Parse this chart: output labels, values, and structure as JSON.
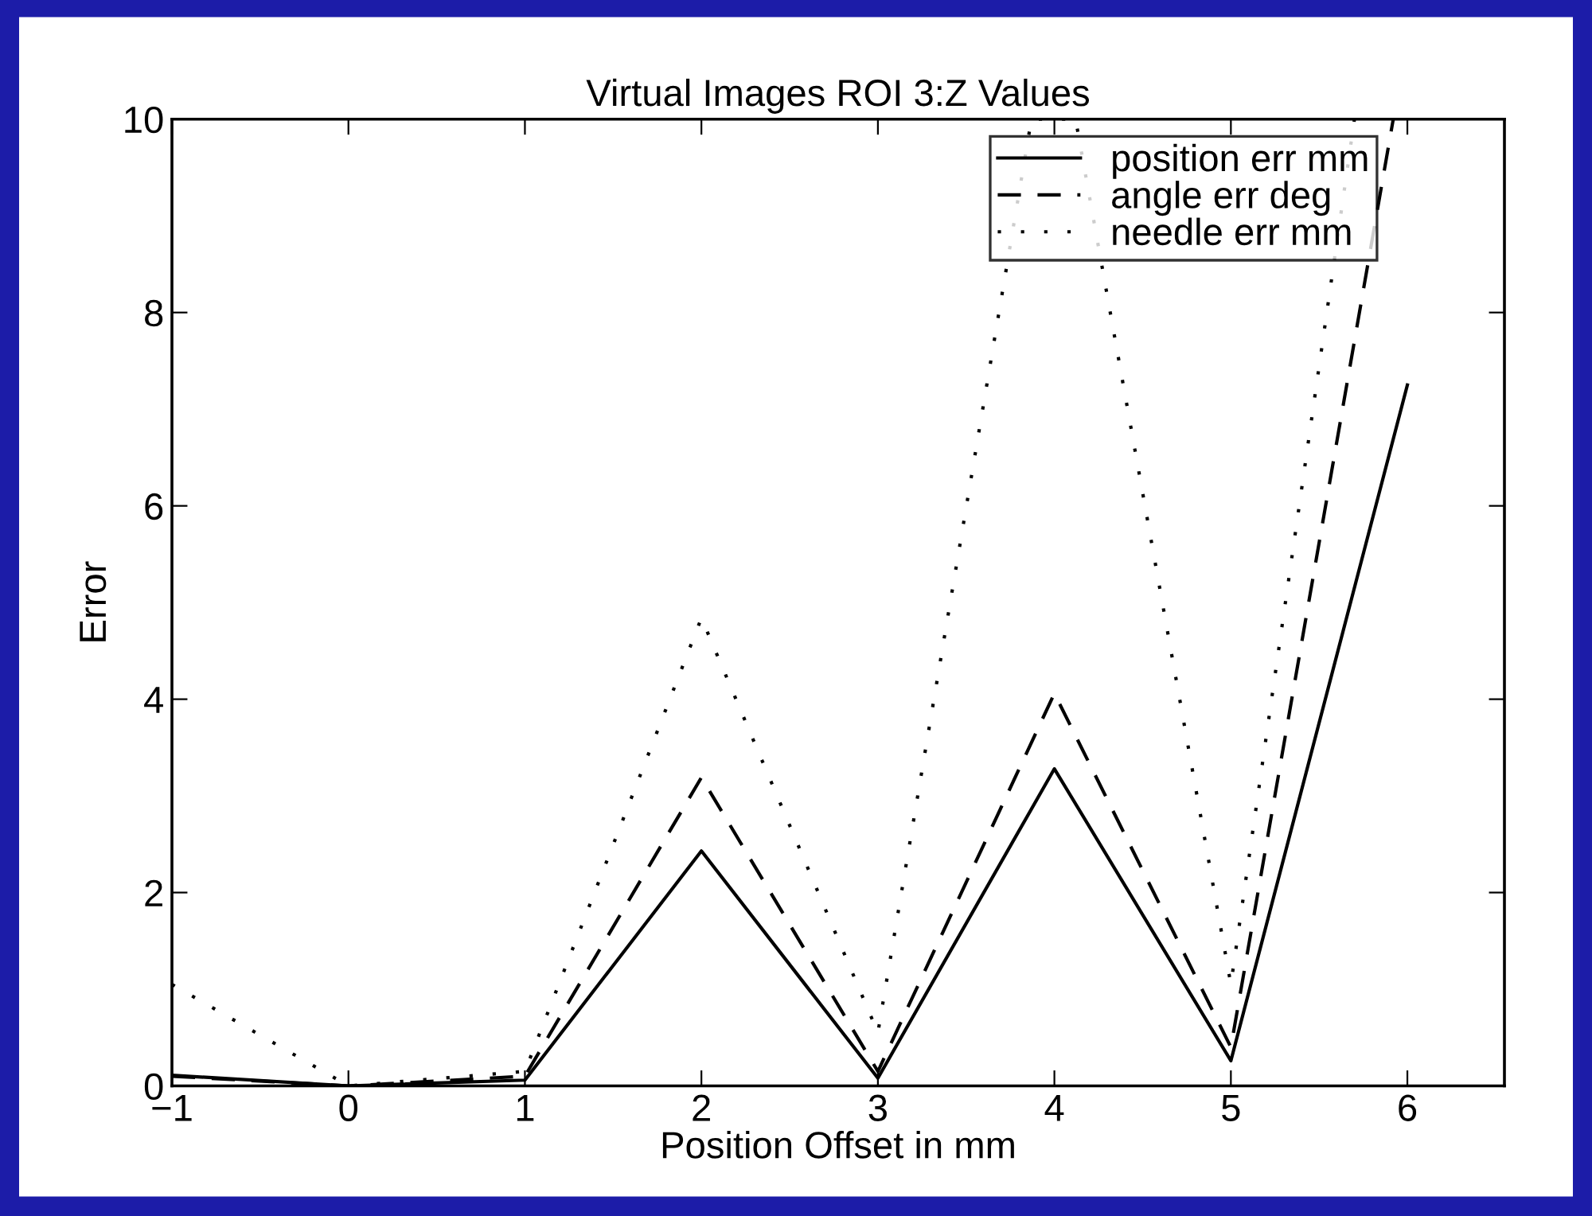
{
  "chart_data": {
    "type": "line",
    "title": "Virtual Images ROI 3:Z Values",
    "xlabel": "Position Offset in mm",
    "ylabel": "Error",
    "x": [
      -1,
      0,
      1,
      2,
      3,
      4,
      5,
      6
    ],
    "series": [
      {
        "name": "position err mm",
        "color": "#000000",
        "line_style": "solid",
        "values": [
          0.11,
          0,
          0.06,
          2.43,
          0.08,
          3.28,
          0.26,
          7.25
        ]
      },
      {
        "name": "angle err deg",
        "color": "#000000",
        "line_style": "dashed",
        "x": [
          -1,
          0,
          1,
          2,
          3,
          4,
          5,
          5.92
        ],
        "values": [
          0.1,
          0,
          0.1,
          3.19,
          0.15,
          4.06,
          0.4,
          10
        ]
      },
      {
        "name": "needle err mm",
        "color": "#000000",
        "line_style": "dotted",
        "x": [
          -1,
          0,
          1,
          2,
          3,
          3.87,
          4.12,
          5,
          5.7
        ],
        "values": [
          1.05,
          0,
          0.15,
          4.84,
          0.55,
          10,
          10,
          1.05,
          10
        ]
      }
    ],
    "xlim": [
      -1,
      6.55
    ],
    "ylim": [
      0,
      10
    ],
    "xticks": [
      {
        "value": -1,
        "label": "−1"
      },
      0,
      1,
      2,
      3,
      4,
      5,
      6
    ],
    "yticks": [
      0,
      2,
      4,
      6,
      8,
      10
    ],
    "grid": false,
    "legend": "top right",
    "marker": "none"
  }
}
